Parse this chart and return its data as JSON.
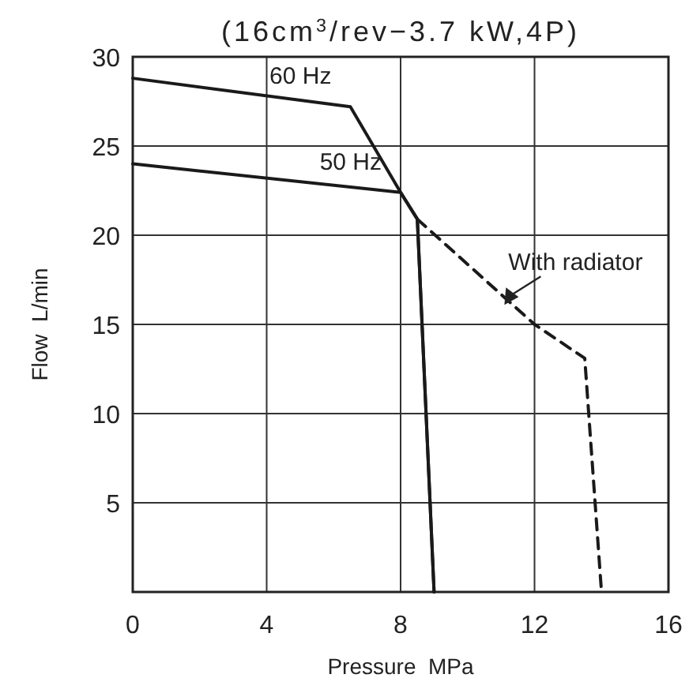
{
  "chart_data": {
    "type": "line",
    "title": "(16cm$^{3}$/rev−3.7 kW,4P)",
    "xlabel": "Pressure  MPa",
    "ylabel": "Flow  L/min",
    "xlim": [
      0,
      16
    ],
    "xticks": [
      0,
      4,
      8,
      12,
      16
    ],
    "ylim": [
      0,
      30
    ],
    "yticks": [
      5,
      10,
      15,
      20,
      25,
      30
    ],
    "grid": true,
    "series": [
      {
        "name": "60 Hz",
        "color": "#1a1a1a",
        "x": [
          0,
          6.5,
          8,
          8.5,
          9
        ],
        "values": [
          28.8,
          27.2,
          22.4,
          20.9,
          0
        ]
      },
      {
        "name": "50 Hz",
        "color": "#1a1a1a",
        "x": [
          0,
          8,
          8.5,
          9
        ],
        "values": [
          24.0,
          22.4,
          20.9,
          0
        ]
      },
      {
        "color": "#1a1a1a",
        "line_style": "dashed",
        "x": [
          8.5,
          12,
          13.5,
          14.0
        ],
        "values": [
          20.9,
          15,
          13.1,
          0
        ]
      }
    ],
    "annotations": [
      {
        "text": "With radiator",
        "x": 11.1,
        "y": 16.1
      }
    ]
  }
}
